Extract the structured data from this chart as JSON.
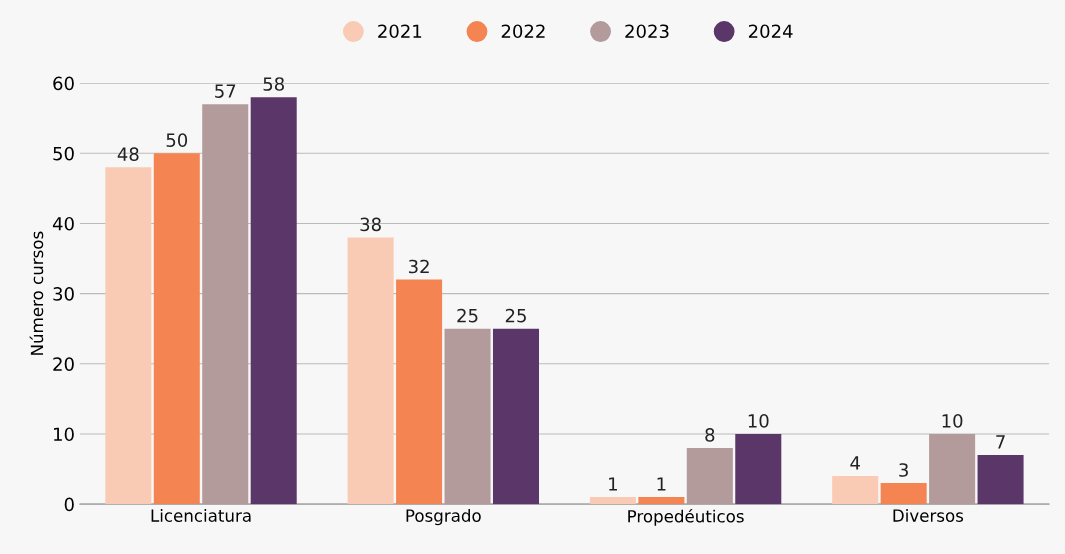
{
  "chart_data": {
    "type": "bar",
    "ylabel": "Número cursos",
    "categories": [
      "Licenciatura",
      "Posgrado",
      "Propedéuticos",
      "Diversos"
    ],
    "series": [
      {
        "name": "2021",
        "color": "#f9cbb4",
        "values": [
          48,
          38,
          1,
          4
        ]
      },
      {
        "name": "2022",
        "color": "#f48552",
        "values": [
          50,
          32,
          1,
          3
        ]
      },
      {
        "name": "2023",
        "color": "#b39a9b",
        "values": [
          57,
          25,
          8,
          10
        ]
      },
      {
        "name": "2024",
        "color": "#5b3668",
        "values": [
          58,
          25,
          10,
          7
        ]
      }
    ],
    "ylim": [
      0,
      60
    ],
    "yticks": [
      0,
      10,
      20,
      30,
      40,
      50,
      60
    ],
    "grid": "y",
    "legend": "top",
    "data_labels": true
  }
}
